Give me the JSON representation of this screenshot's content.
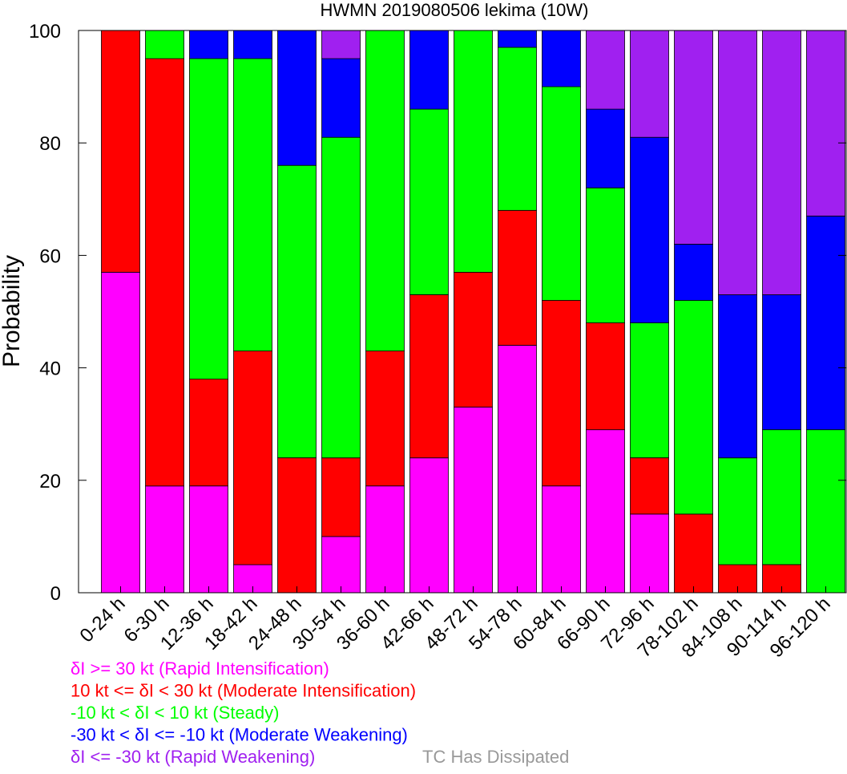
{
  "chart_data": {
    "type": "bar",
    "stacked": true,
    "title": "HWMN 2019080506 lekima (10W)",
    "xlabel": "",
    "ylabel": "Probability",
    "ylim": [
      0,
      100
    ],
    "yticks": [
      0,
      20,
      40,
      60,
      80,
      100
    ],
    "grid": false,
    "categories": [
      "0-24 h",
      "6-30 h",
      "12-36 h",
      "18-42 h",
      "24-48 h",
      "30-54 h",
      "36-60 h",
      "42-66 h",
      "48-72 h",
      "54-78 h",
      "60-84 h",
      "66-90 h",
      "72-96 h",
      "78-102 h",
      "84-108 h",
      "90-114 h",
      "96-120 h"
    ],
    "series": [
      {
        "name": "δI >= 30 kt (Rapid Intensification)",
        "color": "#ff00ff",
        "values": [
          57,
          19,
          19,
          5,
          0,
          10,
          19,
          24,
          33,
          44,
          19,
          29,
          14,
          0,
          0,
          0,
          0
        ]
      },
      {
        "name": "10 kt <= δI < 30 kt (Moderate Intensification)",
        "color": "#ff0000",
        "values": [
          43,
          76,
          19,
          38,
          24,
          14,
          24,
          29,
          24,
          24,
          33,
          19,
          10,
          14,
          5,
          5,
          0
        ]
      },
      {
        "name": "-10 kt < δI < 10 kt (Steady)",
        "color": "#00ff00",
        "values": [
          0,
          5,
          57,
          52,
          52,
          57,
          57,
          33,
          43,
          29,
          38,
          24,
          24,
          38,
          19,
          24,
          29
        ]
      },
      {
        "name": "-30 kt < δI <= -10 kt (Moderate Weakening)",
        "color": "#0000ff",
        "values": [
          0,
          0,
          5,
          5,
          24,
          14,
          0,
          14,
          0,
          3,
          10,
          14,
          33,
          10,
          29,
          24,
          38
        ]
      },
      {
        "name": "δI <= -30 kt (Rapid Weakening)",
        "color": "#a020f0",
        "values": [
          0,
          0,
          0,
          0,
          0,
          5,
          0,
          0,
          0,
          0,
          0,
          14,
          19,
          38,
          47,
          47,
          33
        ]
      },
      {
        "name": "TC Has Dissipated",
        "color": "#999999",
        "values": [
          0,
          0,
          0,
          0,
          0,
          0,
          0,
          0,
          0,
          0,
          0,
          0,
          0,
          0,
          0,
          0,
          0
        ]
      }
    ],
    "legend": {
      "placement": "bottom-left",
      "lines": [
        {
          "left": {
            "text": "δI >= 30 kt (Rapid Intensification)",
            "color": "#ff00ff"
          }
        },
        {
          "left": {
            "text": "10 kt <= δI < 30 kt (Moderate Intensification)",
            "color": "#ff0000"
          }
        },
        {
          "left": {
            "text": "-10 kt < δI < 10 kt (Steady)",
            "color": "#00ff00"
          }
        },
        {
          "left": {
            "text": "-30 kt < δI <= -10 kt (Moderate Weakening)",
            "color": "#0000ff"
          }
        },
        {
          "left": {
            "text": "δI <= -30 kt (Rapid Weakening)",
            "color": "#a020f0"
          },
          "right": {
            "text": "TC Has Dissipated",
            "color": "#999999"
          }
        }
      ]
    }
  }
}
